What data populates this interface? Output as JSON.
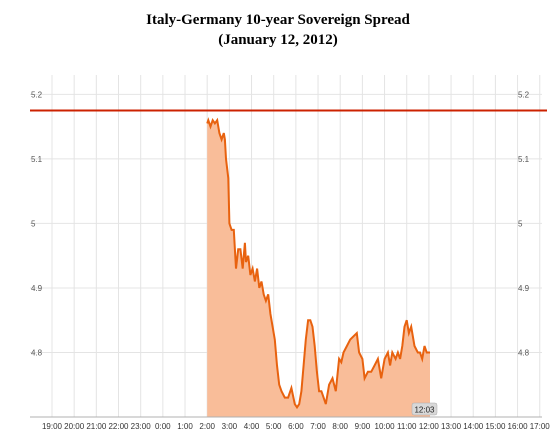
{
  "chart_data": {
    "type": "area",
    "title": "Italy-Germany 10-year Sovereign Spread",
    "subtitle": "(January 12, 2012)",
    "xlabel": "",
    "ylabel": "",
    "ylim": [
      4.7,
      5.23
    ],
    "y_ticks": [
      "5.2",
      "5.1",
      "5",
      "4.9",
      "4.8"
    ],
    "y_tick_values": [
      5.2,
      5.1,
      5.0,
      4.9,
      4.8
    ],
    "x_tick_labels": [
      "19:00",
      "20:00",
      "21:00",
      "22:00",
      "23:00",
      "0:00",
      "1:00",
      "2:00",
      "3:00",
      "4:00",
      "5:00",
      "6:00",
      "7:00",
      "8:00",
      "9:00",
      "10:00",
      "11:00",
      "12:00",
      "13:00",
      "14:00",
      "15:00",
      "16:00",
      "17:00"
    ],
    "reference_line": {
      "value": 5.175,
      "color": "#cc2200"
    },
    "last_time_label": "12:03",
    "grid": true,
    "series": [
      {
        "line_color": "#e8620f",
        "fill_color": "#f9bd99",
        "x": [
          2.0,
          2.05,
          2.15,
          2.25,
          2.35,
          2.45,
          2.55,
          2.65,
          2.75,
          2.8,
          2.85,
          2.95,
          3.0,
          3.1,
          3.2,
          3.3,
          3.4,
          3.5,
          3.6,
          3.7,
          3.75,
          3.85,
          3.95,
          4.05,
          4.15,
          4.25,
          4.35,
          4.45,
          4.55,
          4.65,
          4.75,
          4.85,
          4.95,
          5.05,
          5.15,
          5.25,
          5.35,
          5.5,
          5.65,
          5.8,
          5.95,
          6.05,
          6.15,
          6.25,
          6.35,
          6.45,
          6.55,
          6.65,
          6.75,
          6.85,
          6.95,
          7.05,
          7.15,
          7.25,
          7.35,
          7.5,
          7.65,
          7.8,
          7.95,
          8.05,
          8.15,
          8.3,
          8.45,
          8.6,
          8.75,
          8.85,
          9.0,
          9.1,
          9.25,
          9.4,
          9.55,
          9.7,
          9.85,
          10.0,
          10.15,
          10.25,
          10.35,
          10.5,
          10.6,
          10.7,
          10.8,
          10.9,
          11.0,
          11.1,
          11.2,
          11.35,
          11.5,
          11.6,
          11.7,
          11.8,
          11.9,
          12.05
        ],
        "values": [
          5.155,
          5.16,
          5.15,
          5.16,
          5.155,
          5.16,
          5.14,
          5.13,
          5.14,
          5.13,
          5.1,
          5.07,
          5.0,
          4.99,
          4.99,
          4.93,
          4.96,
          4.96,
          4.93,
          4.97,
          4.94,
          4.95,
          4.92,
          4.93,
          4.91,
          4.93,
          4.9,
          4.91,
          4.89,
          4.88,
          4.89,
          4.86,
          4.84,
          4.82,
          4.78,
          4.75,
          4.74,
          4.73,
          4.73,
          4.745,
          4.72,
          4.715,
          4.72,
          4.74,
          4.78,
          4.82,
          4.85,
          4.85,
          4.84,
          4.81,
          4.77,
          4.74,
          4.74,
          4.73,
          4.72,
          4.75,
          4.76,
          4.74,
          4.79,
          4.785,
          4.8,
          4.81,
          4.82,
          4.825,
          4.83,
          4.8,
          4.79,
          4.76,
          4.77,
          4.77,
          4.78,
          4.79,
          4.76,
          4.79,
          4.8,
          4.78,
          4.8,
          4.79,
          4.8,
          4.79,
          4.81,
          4.84,
          4.85,
          4.83,
          4.84,
          4.81,
          4.8,
          4.8,
          4.79,
          4.81,
          4.8,
          4.8
        ]
      }
    ]
  }
}
